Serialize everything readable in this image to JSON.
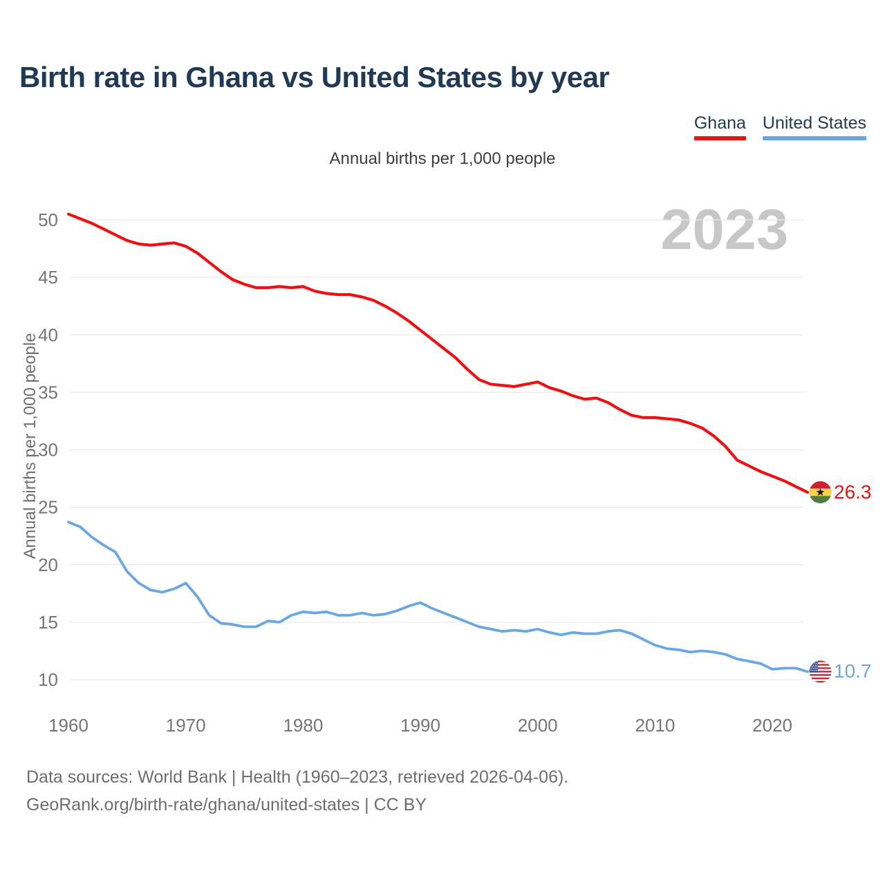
{
  "header": {
    "title": "Birth rate in Ghana vs United States by year",
    "subtitle": "Annual births per 1,000 people"
  },
  "legend": {
    "items": [
      {
        "label": "Ghana",
        "color": "#ee1111"
      },
      {
        "label": "United States",
        "color": "#6aa6e2"
      }
    ]
  },
  "watermark": "2023",
  "y_axis_title": "Annual births per 1,000 people",
  "footer": {
    "line1": "Data sources: World Bank | Health (1960–2023, retrieved 2026-04-06).",
    "line2": "GeoRank.org/birth-rate/ghana/united-states | CC BY"
  },
  "chart_data": {
    "type": "line",
    "title": "Birth rate in Ghana vs United States by year",
    "subtitle": "Annual births per 1,000 people",
    "xlabel": "",
    "ylabel": "Annual births per 1,000 people",
    "xlim": [
      1960,
      2023
    ],
    "ylim": [
      10,
      50
    ],
    "xticks": [
      1960,
      1970,
      1980,
      1990,
      2000,
      2010,
      2020
    ],
    "yticks": [
      10,
      15,
      20,
      25,
      30,
      35,
      40,
      45,
      50
    ],
    "grid": "horizontal",
    "legend_position": "top-right",
    "x": [
      1960,
      1961,
      1962,
      1963,
      1964,
      1965,
      1966,
      1967,
      1968,
      1969,
      1970,
      1971,
      1972,
      1973,
      1974,
      1975,
      1976,
      1977,
      1978,
      1979,
      1980,
      1981,
      1982,
      1983,
      1984,
      1985,
      1986,
      1987,
      1988,
      1989,
      1990,
      1991,
      1992,
      1993,
      1994,
      1995,
      1996,
      1997,
      1998,
      1999,
      2000,
      2001,
      2002,
      2003,
      2004,
      2005,
      2006,
      2007,
      2008,
      2009,
      2010,
      2011,
      2012,
      2013,
      2014,
      2015,
      2016,
      2017,
      2018,
      2019,
      2020,
      2021,
      2022,
      2023
    ],
    "series": [
      {
        "name": "Ghana",
        "color": "#ee1111",
        "end_label": "26.3",
        "flag": "ghana",
        "values": [
          50.5,
          50.1,
          49.7,
          49.2,
          48.7,
          48.2,
          47.9,
          47.8,
          47.9,
          48.0,
          47.7,
          47.1,
          46.3,
          45.5,
          44.8,
          44.4,
          44.1,
          44.1,
          44.2,
          44.1,
          44.2,
          43.8,
          43.6,
          43.5,
          43.5,
          43.3,
          43.0,
          42.5,
          41.9,
          41.2,
          40.4,
          39.6,
          38.8,
          38.0,
          37.0,
          36.1,
          35.7,
          35.6,
          35.5,
          35.7,
          35.9,
          35.4,
          35.1,
          34.7,
          34.4,
          34.5,
          34.1,
          33.5,
          33.0,
          32.8,
          32.8,
          32.7,
          32.6,
          32.3,
          31.9,
          31.2,
          30.3,
          29.1,
          28.6,
          28.1,
          27.7,
          27.3,
          26.8,
          26.3
        ]
      },
      {
        "name": "United States",
        "color": "#6aa6e2",
        "end_label": "10.7",
        "flag": "united-states",
        "values": [
          23.7,
          23.3,
          22.4,
          21.7,
          21.1,
          19.4,
          18.4,
          17.8,
          17.6,
          17.9,
          18.4,
          17.2,
          15.6,
          14.9,
          14.8,
          14.6,
          14.6,
          15.1,
          15.0,
          15.6,
          15.9,
          15.8,
          15.9,
          15.6,
          15.6,
          15.8,
          15.6,
          15.7,
          16.0,
          16.4,
          16.7,
          16.2,
          15.8,
          15.4,
          15.0,
          14.6,
          14.4,
          14.2,
          14.3,
          14.2,
          14.4,
          14.1,
          13.9,
          14.1,
          14.0,
          14.0,
          14.2,
          14.3,
          14.0,
          13.5,
          13.0,
          12.7,
          12.6,
          12.4,
          12.5,
          12.4,
          12.2,
          11.8,
          11.6,
          11.4,
          10.9,
          11.0,
          11.0,
          10.7
        ]
      }
    ]
  }
}
